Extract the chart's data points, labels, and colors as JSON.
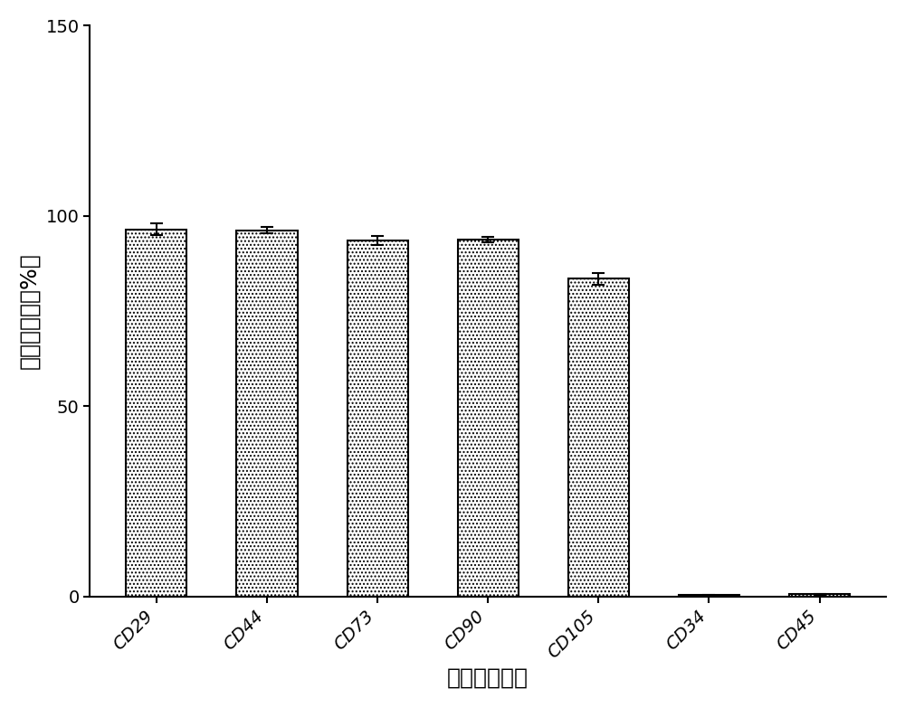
{
  "categories": [
    "CD29",
    "CD44",
    "CD73",
    "CD90",
    "CD105",
    "CD34",
    "CD45"
  ],
  "values": [
    96.5,
    96.2,
    93.5,
    93.8,
    83.5,
    0.4,
    0.6
  ],
  "errors": [
    1.5,
    0.8,
    1.2,
    0.8,
    1.5,
    0.15,
    0.15
  ],
  "ylabel": "阳性细胞率（%）",
  "xlabel": "表面标记抗原",
  "ylim": [
    0,
    150
  ],
  "yticks": [
    0,
    50,
    100,
    150
  ],
  "hatch": "....",
  "background_color": "#ffffff",
  "label_fontsize": 18,
  "tick_fontsize": 14,
  "bar_width": 0.55
}
